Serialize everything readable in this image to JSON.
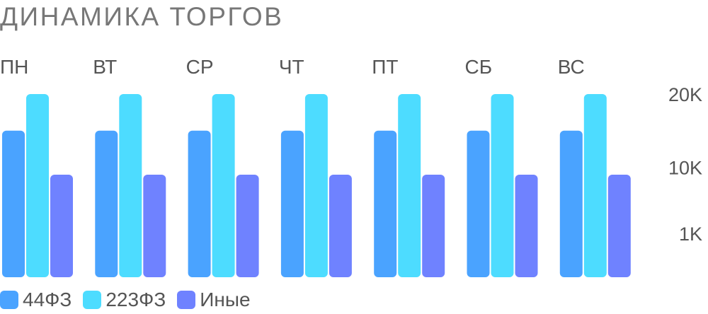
{
  "title": "ДИНАМИКА ТОРГОВ",
  "chart_data": {
    "type": "bar",
    "title": "ДИНАМИКА ТОРГОВ",
    "categories": [
      "ПН",
      "ВТ",
      "СР",
      "ЧТ",
      "ПТ",
      "СБ",
      "ВС"
    ],
    "series": [
      {
        "name": "44ФЗ",
        "color": "#4aa3ff",
        "values": [
          15000,
          15000,
          15000,
          15000,
          15000,
          15000,
          15000
        ]
      },
      {
        "name": "223ФЗ",
        "color": "#4ddcff",
        "values": [
          20000,
          20000,
          20000,
          20000,
          20000,
          20000,
          20000
        ]
      },
      {
        "name": "Иные",
        "color": "#6f82ff",
        "values": [
          9000,
          9000,
          9000,
          9000,
          9000,
          9000,
          9000
        ]
      }
    ],
    "y_ticks": [
      {
        "label": "20K",
        "value": 20000
      },
      {
        "label": "10K",
        "value": 10000
      },
      {
        "label": "1K",
        "value": 1000
      }
    ],
    "ylim": [
      -5000,
      20000
    ],
    "grid": false,
    "legend_position": "bottom-left",
    "y_axis_position": "right",
    "category_labels_position": "top"
  }
}
